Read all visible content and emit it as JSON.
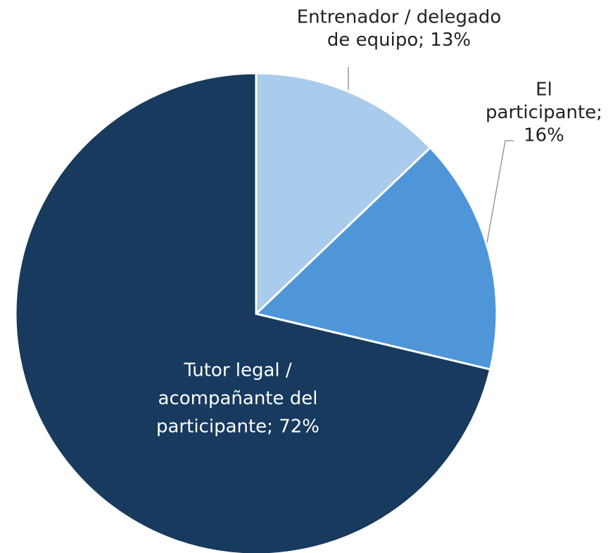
{
  "chart_data": {
    "type": "pie",
    "values": [
      13,
      16,
      72
    ],
    "value_labels": [
      [
        "Entrenador / delegado",
        "de equipo; 13%"
      ],
      [
        "El",
        "participante;",
        "16%"
      ],
      [
        "Tutor legal /",
        "acompañante del",
        "participante; 72%"
      ]
    ],
    "colors": [
      "#a9cbec",
      "#4f96d9",
      "#173a5e"
    ]
  }
}
